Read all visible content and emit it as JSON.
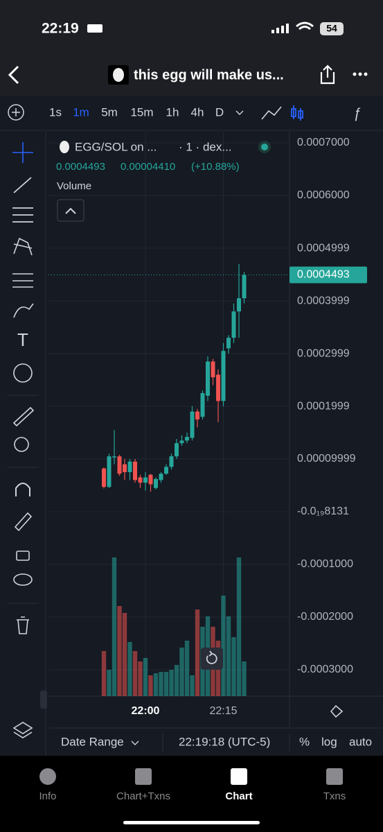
{
  "status": {
    "time": "22:19",
    "battery": "54"
  },
  "header": {
    "title": "this egg will make us..."
  },
  "toolbar": {
    "intervals": [
      "1s",
      "1m",
      "5m",
      "15m",
      "1h",
      "4h",
      "D"
    ],
    "active": 1
  },
  "legend": {
    "pair": "EGG/SOL on ...",
    "meta": "· 1 · dex...",
    "price": "0.0004493",
    "change": "0.00004410",
    "percent": "(+10.88%)",
    "volume": "Volume"
  },
  "chart_data": {
    "type": "candlestick",
    "x": [
      "21:52",
      "21:53",
      "21:54",
      "21:55",
      "21:56",
      "21:57",
      "21:58",
      "21:59",
      "22:00",
      "22:01",
      "22:02",
      "22:03",
      "22:04",
      "22:05",
      "22:06",
      "22:07",
      "22:08",
      "22:09",
      "22:10",
      "22:11",
      "22:12",
      "22:13",
      "22:14",
      "22:15",
      "22:16",
      "22:17",
      "22:18",
      "22:19"
    ],
    "open": [
      8.2e-05,
      4.7e-05,
      0.000103,
      0.000105,
      9e-05,
      7.5e-05,
      9.5e-05,
      6.5e-05,
      5.5e-05,
      7e-05,
      4.5e-05,
      6e-05,
      7.2e-05,
      8.5e-05,
      0.000105,
      0.00013,
      0.000135,
      0.00014,
      0.00019,
      0.00018,
      0.00022,
      0.000285,
      0.00026,
      0.00021,
      0.00031,
      0.00033,
      0.00038,
      0.000405
    ],
    "high": [
      8.4e-05,
      0.00011,
      0.000155,
      0.000108,
      0.0001,
      0.0001,
      0.0001,
      7e-05,
      7.5e-05,
      7.2e-05,
      6.5e-05,
      7.5e-05,
      9e-05,
      0.00011,
      0.000138,
      0.000145,
      0.00015,
      0.0002,
      0.000195,
      0.00023,
      0.000295,
      0.00029,
      0.00027,
      0.00032,
      0.000335,
      0.000395,
      0.00047,
      0.000455
    ],
    "low": [
      4.4e-05,
      4.5e-05,
      9e-05,
      6.8e-05,
      6e-05,
      6e-05,
      5.5e-05,
      4.5e-05,
      4e-05,
      3.8e-05,
      4.2e-05,
      5.5e-05,
      7e-05,
      8e-05,
      0.0001,
      0.000125,
      0.00013,
      0.000135,
      0.00016,
      0.000175,
      0.00021,
      0.00024,
      0.00017,
      0.0002,
      0.0003,
      0.00032,
      0.00033,
      0.000395
    ],
    "close": [
      4.7e-05,
      0.000105,
      0.000105,
      7.2e-05,
      7.5e-05,
      9.5e-05,
      6e-05,
      5.5e-05,
      6.5e-05,
      5.2e-05,
      6.2e-05,
      7.2e-05,
      8.5e-05,
      0.000105,
      0.00013,
      0.000135,
      0.000142,
      0.00019,
      0.000175,
      0.000225,
      0.000285,
      0.000255,
      0.00021,
      0.000305,
      0.00033,
      0.00038,
      0.000405,
      0.0004493
    ],
    "volume": [
      65,
      38,
      200,
      130,
      120,
      78,
      65,
      50,
      55,
      30,
      33,
      35,
      35,
      38,
      45,
      70,
      80,
      30,
      125,
      100,
      115,
      100,
      80,
      145,
      115,
      85,
      200,
      50
    ],
    "up_color": "#26a69a",
    "down_color": "#ef5350",
    "ylim": [
      -0.00035,
      0.000721
    ],
    "yticks": [
      {
        "value": 0.0007,
        "label": "0.0007000"
      },
      {
        "value": 0.0006,
        "label": "0.0006000"
      },
      {
        "value": 0.0004999,
        "label": "0.0004999"
      },
      {
        "value": 0.0003999,
        "label": "0.0003999"
      },
      {
        "value": 0.0002999,
        "label": "0.0002999"
      },
      {
        "value": 0.0001999,
        "label": "0.0001999"
      },
      {
        "value": 9.999e-05,
        "label": "0.00009999"
      },
      {
        "value": -8.131e-21,
        "label": "-0.0₁₉8131"
      },
      {
        "value": -0.0001,
        "label": "-0.0001000"
      },
      {
        "value": -0.0002,
        "label": "-0.0002000"
      },
      {
        "value": -0.0003,
        "label": "-0.0003000"
      }
    ],
    "xticks": [
      "22:00",
      "22:15"
    ]
  },
  "footer": {
    "range": "Date Range",
    "clock": "22:19:18 (UTC-5)",
    "percent": "%",
    "log": "log",
    "auto": "auto"
  },
  "tabs": [
    "Info",
    "Chart+Txns",
    "Chart",
    "Txns"
  ],
  "active_tab": 2
}
